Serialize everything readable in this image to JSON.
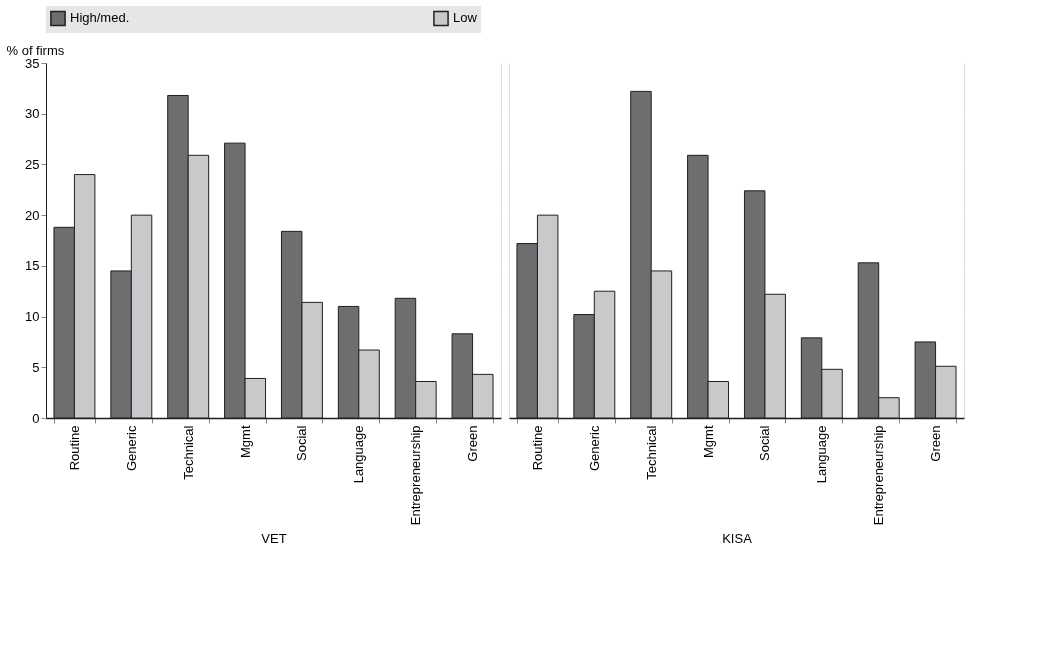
{
  "chart_data": [
    {
      "type": "bar",
      "ylabel": "% of firms",
      "xlabel": "VET",
      "categories": [
        "Routine",
        "Generic",
        "Technical",
        "Mgmt",
        "Social",
        "Language",
        "Entrepreneurship",
        "Green"
      ],
      "series": [
        {
          "name": "High/med.",
          "color": "#6d6e70",
          "values": [
            18.8,
            14.5,
            31.8,
            27.1,
            18.4,
            11.0,
            11.8,
            8.3
          ]
        },
        {
          "name": "Low",
          "color": "#c8c9cb",
          "values": [
            24.0,
            20.0,
            25.9,
            3.9,
            11.4,
            6.7,
            3.6,
            4.3
          ]
        }
      ],
      "ylim": [
        0,
        35
      ],
      "yticks": [
        0,
        5,
        10,
        15,
        20,
        25,
        30,
        35
      ],
      "grid": true,
      "legend": "top"
    },
    {
      "type": "bar",
      "xlabel": "KISA",
      "categories": [
        "Routine",
        "Generic",
        "Technical",
        "Mgmt",
        "Social",
        "Language",
        "Entrepreneurship",
        "Green"
      ],
      "series": [
        {
          "name": "High/med.",
          "color": "#6d6e70",
          "values": [
            17.2,
            10.2,
            32.2,
            25.9,
            22.4,
            7.9,
            15.3,
            7.5
          ]
        },
        {
          "name": "Low",
          "color": "#c8c9cb",
          "values": [
            20.0,
            12.5,
            14.5,
            3.6,
            12.2,
            4.8,
            2.0,
            5.1
          ]
        }
      ],
      "ylim": [
        0,
        35
      ],
      "yticks": [
        0,
        5,
        10,
        15,
        20,
        25,
        30,
        35
      ],
      "grid": true,
      "tick_labels": "x"
    }
  ]
}
